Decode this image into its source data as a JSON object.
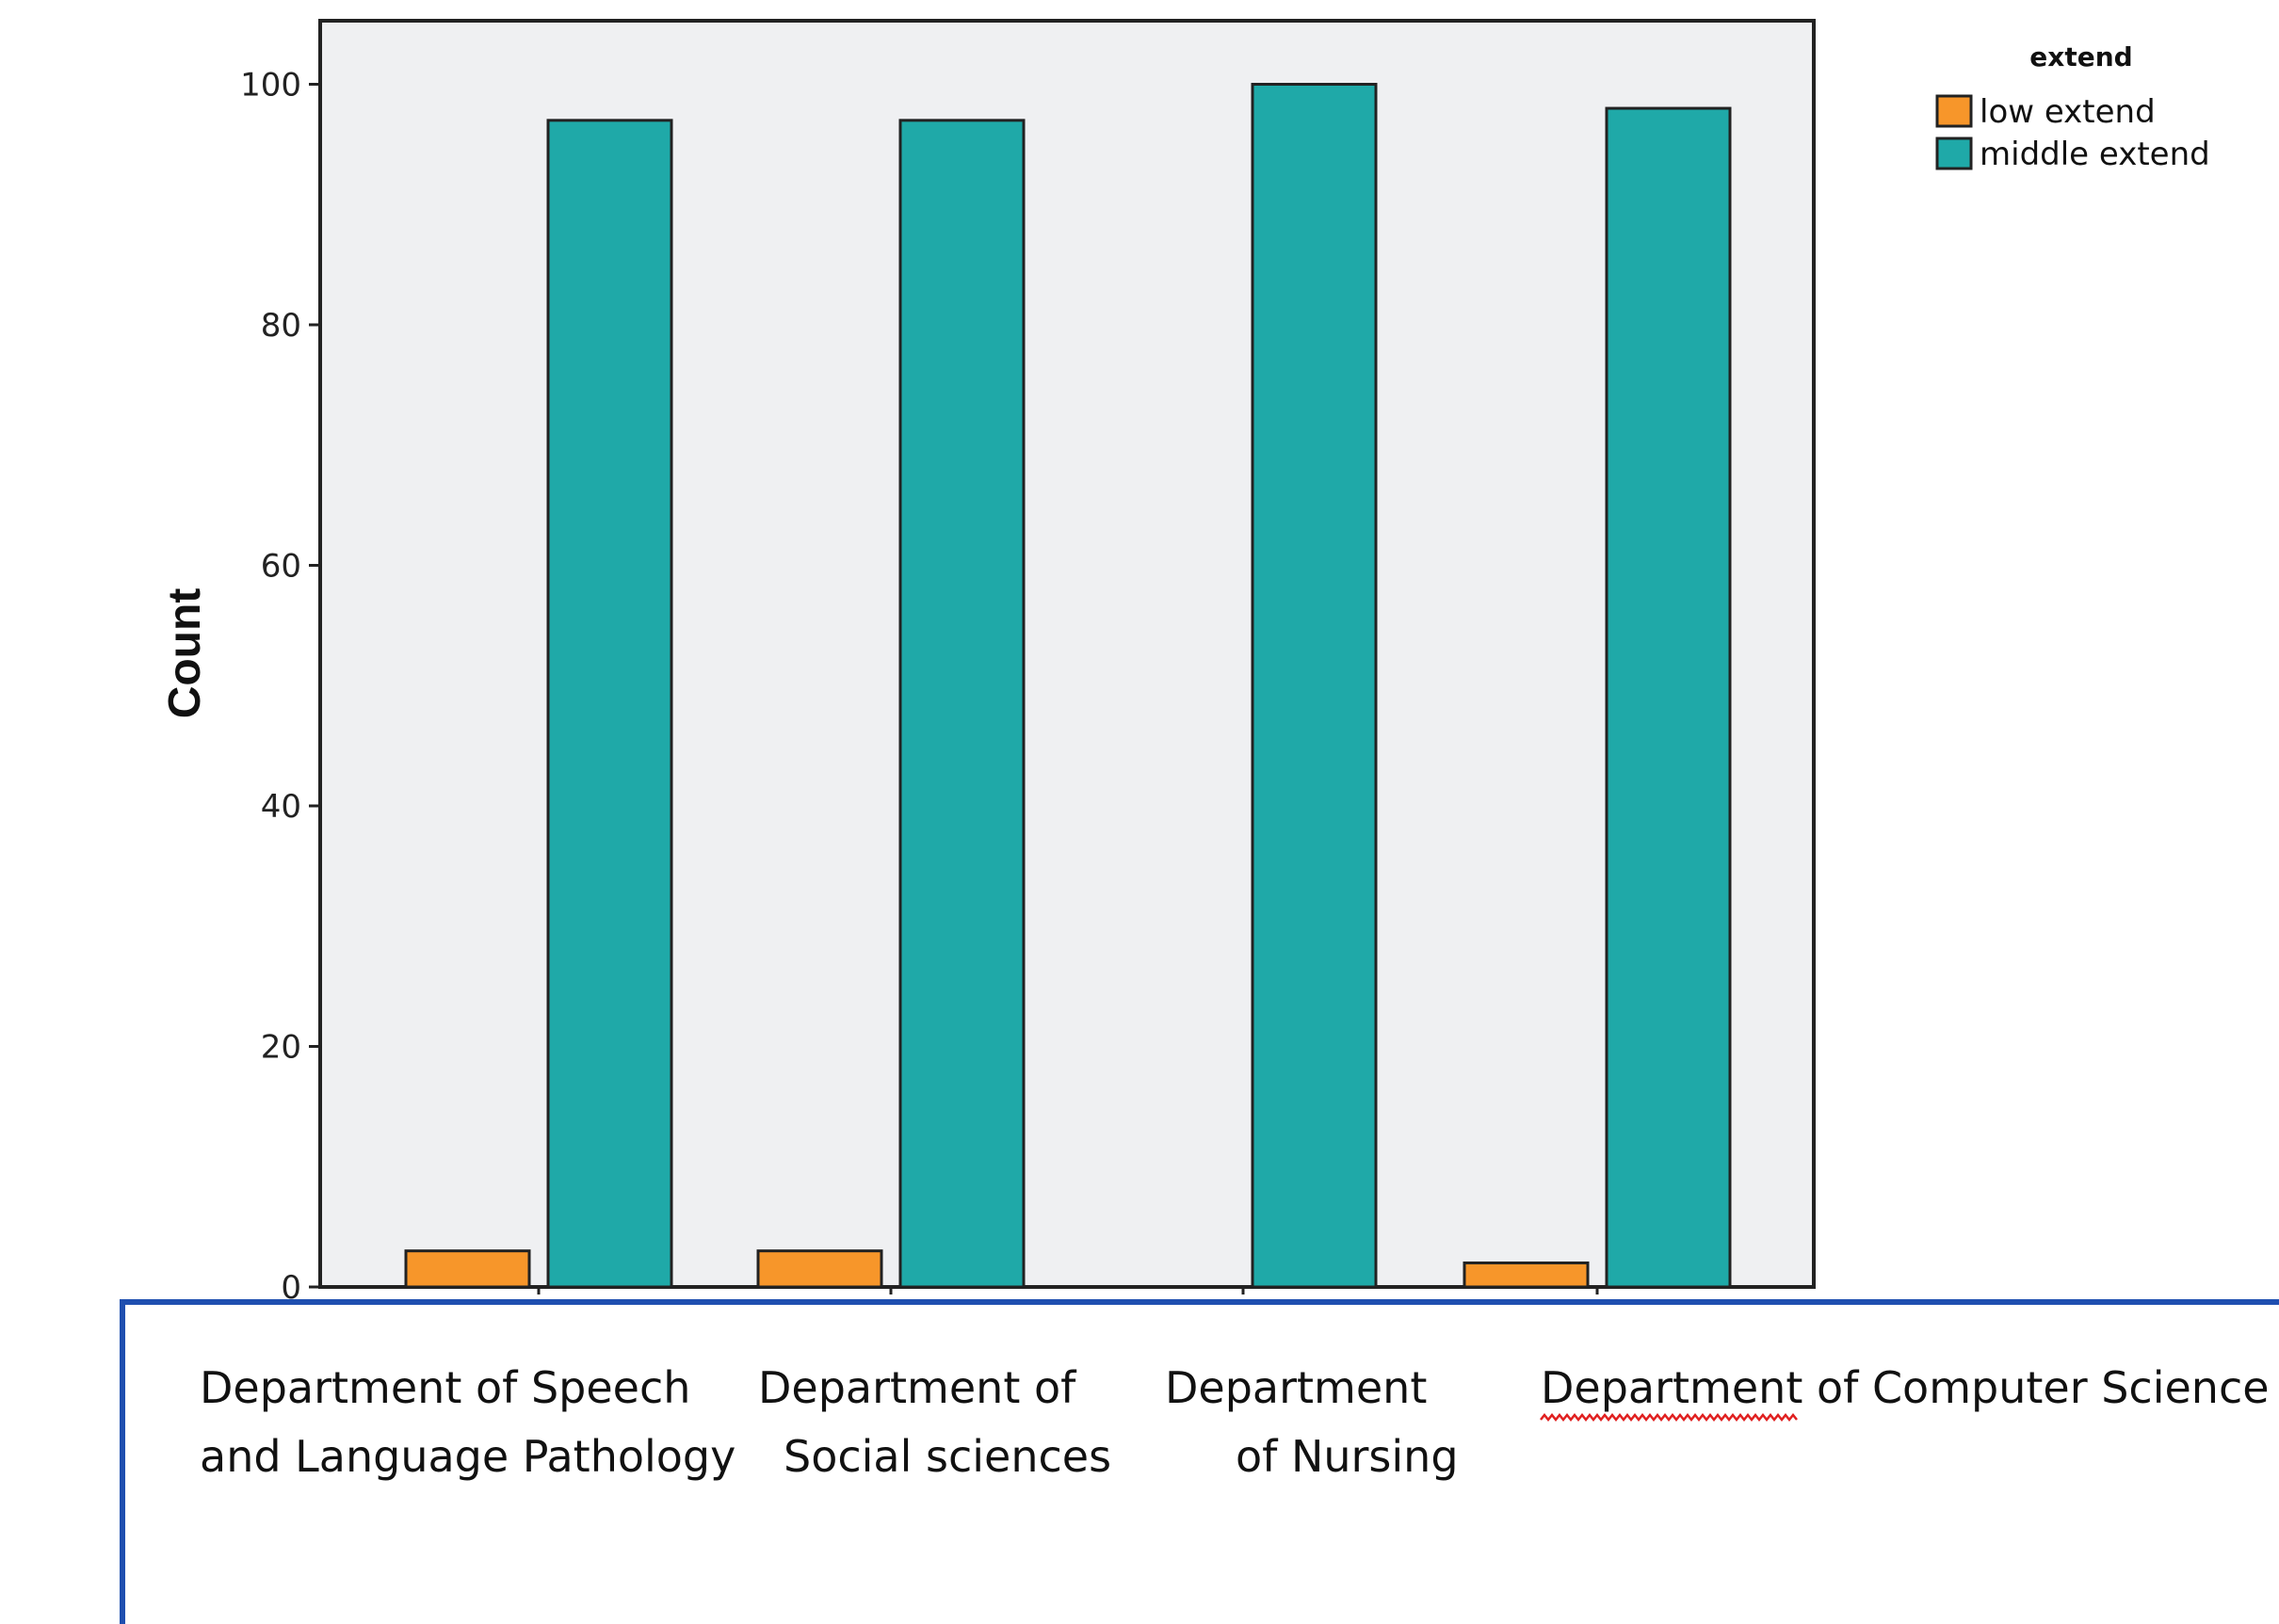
{
  "chart_data": {
    "type": "bar",
    "title": "",
    "xlabel": "",
    "ylabel": "Count",
    "ylim": [
      0,
      105
    ],
    "yticks": [
      "0",
      "20",
      "40",
      "60",
      "80",
      "100"
    ],
    "categories": [
      [
        "Department of Speech",
        "and Language Pathology"
      ],
      [
        "Department of",
        "Social sciences"
      ],
      [
        "Department",
        "of Nursing"
      ],
      [
        "Department of Computer Science"
      ]
    ],
    "series": [
      {
        "name": "low extend",
        "color": "#f7962a",
        "values": [
          3,
          3,
          0,
          2
        ]
      },
      {
        "name": "middle extend",
        "color": "#1fa9a8",
        "values": [
          97,
          97,
          100,
          98
        ]
      }
    ],
    "legend": {
      "title": "extend",
      "position": "top-right"
    },
    "grid": false
  }
}
